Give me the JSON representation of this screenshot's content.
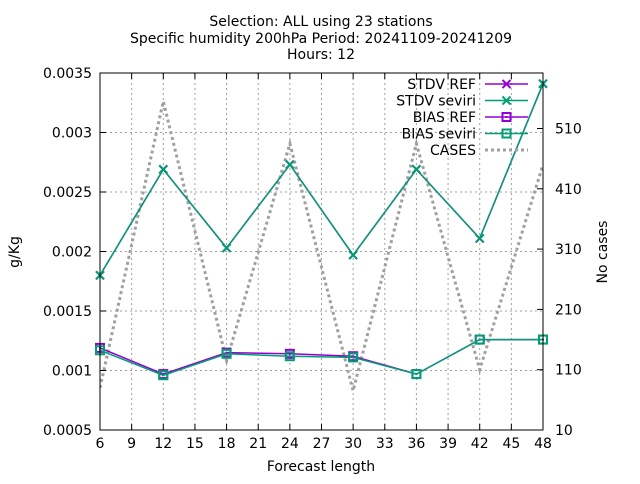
{
  "title_lines": [
    "Selection: ALL using    23 stations",
    "Specific humidity 200hPa   Period: 20241109-20241209",
    "Hours: 12"
  ],
  "colors": {
    "ref": "#9400d3",
    "seviri": "#009e73",
    "cases": "#a0a0a0",
    "grid": "#a0a0a0"
  },
  "chart_data": {
    "type": "line",
    "xlabel": "Forecast length",
    "ylabel": "g/Kg",
    "y2label": "No cases",
    "x_ticks": [
      6,
      9,
      12,
      15,
      18,
      21,
      24,
      27,
      30,
      33,
      36,
      39,
      42,
      45,
      48
    ],
    "y_ticks": [
      "0.0005",
      "0.001",
      "0.0015",
      "0.002",
      "0.0025",
      "0.003",
      "0.0035"
    ],
    "y2_ticks": [
      "10",
      "110",
      "210",
      "310",
      "410",
      "510"
    ],
    "xlim": [
      6,
      48
    ],
    "ylim": [
      0.0005,
      0.0035
    ],
    "y2lim": [
      10,
      510
    ],
    "grid": true,
    "legend_position": "top-right",
    "series": [
      {
        "name": "STDV REF",
        "axis": "y",
        "marker": "x",
        "color": "#9400d3",
        "x": [
          6,
          12,
          18,
          24,
          30,
          36,
          42,
          48
        ],
        "values": [
          0.0018,
          0.00269,
          0.00203,
          0.00273,
          0.00197,
          0.00269,
          0.00211,
          0.00341
        ]
      },
      {
        "name": "STDV seviri",
        "axis": "y",
        "marker": "x",
        "color": "#009e73",
        "x": [
          6,
          12,
          18,
          24,
          30,
          36,
          42,
          48
        ],
        "values": [
          0.0018,
          0.00269,
          0.00203,
          0.00273,
          0.00197,
          0.00269,
          0.00211,
          0.00341
        ]
      },
      {
        "name": "BIAS REF",
        "axis": "y",
        "marker": "square",
        "color": "#9400d3",
        "x": [
          6,
          12,
          18,
          24,
          30,
          36,
          42,
          48
        ],
        "values": [
          0.00119,
          0.00097,
          0.00115,
          0.00114,
          0.00112,
          0.00097,
          0.00126,
          0.00126
        ]
      },
      {
        "name": "BIAS seviri",
        "axis": "y",
        "marker": "square",
        "color": "#009e73",
        "x": [
          6,
          12,
          18,
          24,
          30,
          36,
          42,
          48
        ],
        "values": [
          0.00117,
          0.00096,
          0.00114,
          0.00112,
          0.00111,
          0.00097,
          0.00126,
          0.00126
        ]
      },
      {
        "name": "CASES",
        "axis": "y2",
        "marker": "none",
        "color": "#a0a0a0",
        "x": [
          6,
          12,
          18,
          24,
          30,
          36,
          42,
          48
        ],
        "values": [
          80,
          555,
          125,
          485,
          75,
          485,
          110,
          450
        ]
      }
    ]
  }
}
